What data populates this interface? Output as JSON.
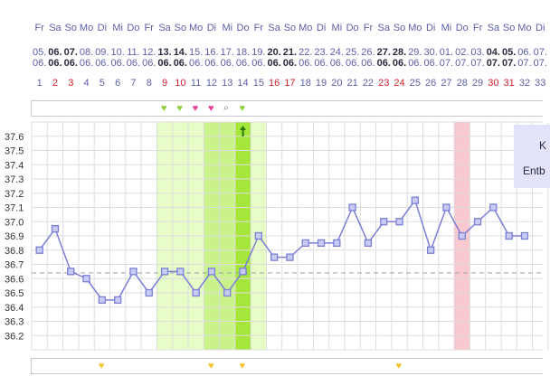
{
  "header": {
    "weekdays": [
      "Fr",
      "Sa",
      "So",
      "Mo",
      "Di",
      "Mi",
      "Do",
      "Fr",
      "Sa",
      "So",
      "Mo",
      "Di",
      "Mi",
      "Do",
      "Fr",
      "Sa",
      "So",
      "Mo",
      "Di",
      "Mi",
      "Do",
      "Fr",
      "Sa",
      "So",
      "Mo",
      "Di",
      "Mi",
      "Do",
      "Fr",
      "Sa",
      "So",
      "Mo",
      "Di"
    ],
    "dates_day": [
      "05.",
      "06.",
      "07.",
      "08.",
      "09.",
      "10.",
      "11.",
      "12.",
      "13.",
      "14.",
      "15.",
      "16.",
      "17.",
      "18.",
      "19.",
      "20.",
      "21.",
      "22.",
      "23.",
      "24.",
      "25.",
      "26.",
      "27.",
      "28.",
      "29.",
      "30.",
      "01.",
      "02.",
      "03.",
      "04.",
      "05.",
      "06.",
      "07."
    ],
    "dates_month": [
      "06.",
      "06.",
      "06.",
      "06.",
      "06.",
      "06.",
      "06.",
      "06.",
      "06.",
      "06.",
      "06.",
      "06.",
      "06.",
      "06.",
      "06.",
      "06.",
      "06.",
      "06.",
      "06.",
      "06.",
      "06.",
      "06.",
      "06.",
      "06.",
      "06.",
      "06.",
      "07.",
      "07.",
      "07.",
      "07.",
      "07.",
      "07.",
      "07."
    ],
    "cycle_days": [
      "1",
      "2",
      "3",
      "4",
      "5",
      "6",
      "7",
      "8",
      "9",
      "10",
      "11",
      "12",
      "13",
      "14",
      "15",
      "16",
      "17",
      "18",
      "19",
      "20",
      "21",
      "22",
      "23",
      "24",
      "25",
      "26",
      "27",
      "28",
      "29",
      "30",
      "31",
      "32",
      "33"
    ],
    "red_days": [
      2,
      3,
      9,
      10,
      16,
      17,
      23,
      24,
      30,
      31
    ],
    "bold_days": [
      2,
      3,
      9,
      10,
      16,
      17,
      23,
      24,
      30,
      31
    ]
  },
  "top_strip_icons": [
    {
      "col": 9,
      "icon": "green-heart-icon",
      "glyph": "♥",
      "cls": "heart-g"
    },
    {
      "col": 10,
      "icon": "green-heart-icon",
      "glyph": "♥",
      "cls": "heart-g"
    },
    {
      "col": 11,
      "icon": "pink-heart-icon",
      "glyph": "♥",
      "cls": "heart-p"
    },
    {
      "col": 12,
      "icon": "pink-heart-icon",
      "glyph": "♥",
      "cls": "heart-p"
    },
    {
      "col": 13,
      "icon": "magnifier-icon",
      "glyph": "⌕",
      "cls": "mag"
    },
    {
      "col": 14,
      "icon": "green-heart-icon",
      "glyph": "♥",
      "cls": "heart-g"
    }
  ],
  "bottom_strip_icons": [
    {
      "col": 5,
      "icon": "yellow-heart-icon",
      "glyph": "♥",
      "cls": "heart-y"
    },
    {
      "col": 12,
      "icon": "yellow-heart-icon",
      "glyph": "♥",
      "cls": "heart-y"
    },
    {
      "col": 14,
      "icon": "yellow-heart-icon",
      "glyph": "♥",
      "cls": "heart-y"
    },
    {
      "col": 24,
      "icon": "yellow-heart-icon",
      "glyph": "♥",
      "cls": "heart-y"
    }
  ],
  "legend": {
    "line1": "K",
    "line2": "Entb"
  },
  "colors": {
    "line": "#7b7fd6",
    "point_fill": "#c9cbf3",
    "fertile_light": "#e8fcc8",
    "fertile_mid": "#c9f28a",
    "fertile_dark": "#a4e63a",
    "period": "#f8c9cf",
    "coverline": "#aaaaaa",
    "grid": "#dddddd"
  },
  "chart_data": {
    "type": "line",
    "ylim": [
      36.1,
      37.7
    ],
    "y_ticks": [
      "37.6",
      "37.5",
      "37.4",
      "37.3",
      "37.2",
      "37.1",
      "37.0",
      "36.9",
      "36.8",
      "36.7",
      "36.6",
      "36.5",
      "36.4",
      "36.3",
      "36.2"
    ],
    "coverline": 36.64,
    "ovulation_marker_day": 14,
    "fertile_light_days": [
      9,
      15
    ],
    "fertile_mid_days": [
      12,
      13
    ],
    "fertile_dark_days": [
      14,
      14
    ],
    "period_days": [
      28,
      28
    ],
    "series": [
      {
        "x": [
          1,
          2,
          3,
          4,
          5,
          6,
          7,
          8,
          9,
          10,
          11,
          12,
          13,
          14,
          15,
          16,
          17,
          18,
          19,
          20,
          21,
          22,
          23,
          24,
          25,
          26,
          27,
          28,
          29,
          30,
          31,
          32
        ],
        "values": [
          36.8,
          36.95,
          36.65,
          36.6,
          36.45,
          36.45,
          36.65,
          36.5,
          36.65,
          36.65,
          36.5,
          36.65,
          36.5,
          36.65,
          36.9,
          36.75,
          36.75,
          36.85,
          36.85,
          36.85,
          37.1,
          36.85,
          37.0,
          37.0,
          37.15,
          36.8,
          37.1,
          36.9,
          37.0,
          37.1,
          36.9,
          36.9
        ]
      }
    ]
  }
}
